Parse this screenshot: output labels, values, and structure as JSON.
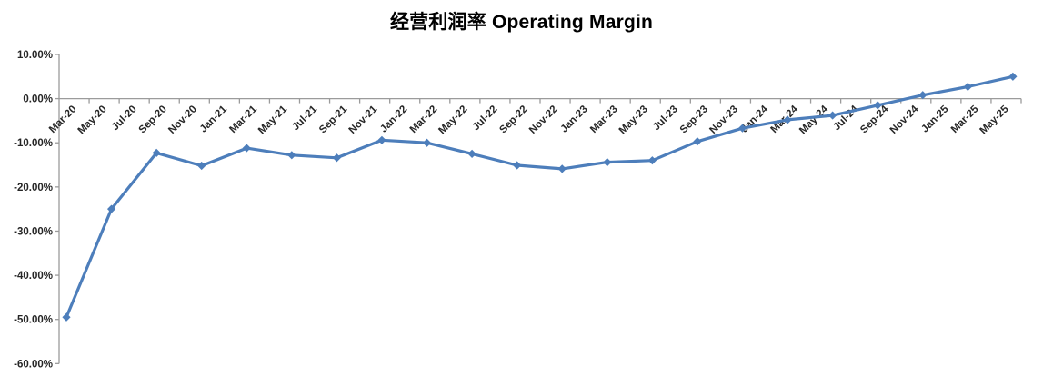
{
  "header": {
    "title": "经营利润率 Operating Margin"
  },
  "chart_data": {
    "type": "line",
    "title": "经营利润率 Operating Margin",
    "xlabel": "",
    "ylabel": "",
    "ylim": [
      -60,
      10
    ],
    "grid": false,
    "legend_position": "none",
    "marker_shape": "diamond",
    "line_color": "#4D7EBB",
    "axis_color": "#9B9B9B",
    "label_color": "#262626",
    "y_tick_values": [
      10,
      0,
      -10,
      -20,
      -30,
      -40,
      -50,
      -60
    ],
    "y_axis_tick_labels": [
      "10.00%",
      "0.00%",
      "-10.00%",
      "-20.00%",
      "-30.00%",
      "-40.00%",
      "-50.00%",
      "-60.00%"
    ],
    "x_axis_tick_labels": [
      "Mar-20",
      "May-20",
      "Jul-20",
      "Sep-20",
      "Nov-20",
      "Jan-21",
      "Mar-21",
      "May-21",
      "Jul-21",
      "Sep-21",
      "Nov-21",
      "Jan-22",
      "Mar-22",
      "May-22",
      "Jul-22",
      "Sep-22",
      "Nov-22",
      "Jan-23",
      "Mar-23",
      "May-23",
      "Jul-23",
      "Sep-23",
      "Nov-23",
      "Jan-24",
      "Mar-24",
      "May-24",
      "Jul-24",
      "Sep-24",
      "Nov-24",
      "Jan-25",
      "Mar-25",
      "May-25"
    ],
    "series": [
      {
        "name": "经营利润率 Operating Margin",
        "x": [
          "Mar-20",
          "Jun-20",
          "Sep-20",
          "Dec-20",
          "Mar-21",
          "Jun-21",
          "Sep-21",
          "Dec-21",
          "Mar-22",
          "Jun-22",
          "Sep-22",
          "Dec-22",
          "Mar-23",
          "Jun-23",
          "Sep-23",
          "Dec-23",
          "Mar-24",
          "Jun-24",
          "Sep-24",
          "Dec-24",
          "Mar-25",
          "Jun-25"
        ],
        "values": [
          -49.5,
          -25.0,
          -12.3,
          -15.2,
          -11.2,
          -12.8,
          -13.4,
          -9.4,
          -10.0,
          -12.5,
          -15.1,
          -15.9,
          -14.4,
          -14.0,
          -9.7,
          -6.7,
          -4.8,
          -3.8,
          -1.5,
          0.8,
          2.7,
          5.0
        ]
      }
    ]
  }
}
